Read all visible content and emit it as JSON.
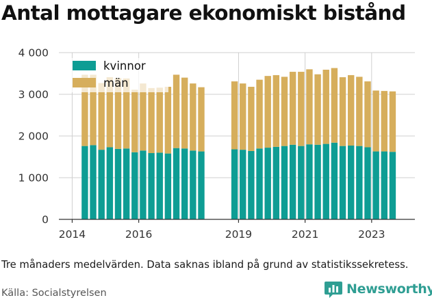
{
  "title": "Antal mottagare ekonomiskt bistånd",
  "note": "Tre månaders medelvärden. Data saknas ibland på grund av statistikssekretess.",
  "source": "Källa: Socialstyrelsen",
  "brand": {
    "name": "Newsworthy",
    "icon": "newsworthy-logo-icon"
  },
  "colors": {
    "kvinnor": "#0e9d94",
    "man": "#d6ae5c",
    "grid": "#cfcfcf",
    "axis": "#333333"
  },
  "chart_data": {
    "type": "bar",
    "stacked": true,
    "grid": true,
    "legend_position": "top-left",
    "ylim": [
      0,
      4000
    ],
    "yticks": [
      0,
      1000,
      2000,
      3000,
      4000
    ],
    "ytick_labels": [
      "0",
      "1 000",
      "2 000",
      "3 000",
      "4 000"
    ],
    "xlim": [
      2013.6,
      2024.3
    ],
    "xticks": [
      2014,
      2016,
      2019,
      2021,
      2023
    ],
    "xtick_labels": [
      "2014",
      "2016",
      "2019",
      "2021",
      "2023"
    ],
    "x": [
      2014.38,
      2014.63,
      2014.88,
      2015.13,
      2015.38,
      2015.63,
      2015.88,
      2016.13,
      2016.38,
      2016.63,
      2016.88,
      2017.13,
      2017.38,
      2017.63,
      2017.88,
      2018.88,
      2019.13,
      2019.38,
      2019.63,
      2019.88,
      2020.13,
      2020.38,
      2020.63,
      2020.88,
      2021.13,
      2021.38,
      2021.63,
      2021.88,
      2022.13,
      2022.38,
      2022.63,
      2022.88,
      2023.13,
      2023.38,
      2023.63
    ],
    "series": [
      {
        "name": "kvinnor",
        "values": [
          1760,
          1780,
          1670,
          1730,
          1690,
          1700,
          1610,
          1650,
          1590,
          1600,
          1580,
          1710,
          1700,
          1650,
          1630,
          1680,
          1670,
          1640,
          1700,
          1720,
          1740,
          1760,
          1790,
          1760,
          1800,
          1790,
          1810,
          1840,
          1760,
          1770,
          1760,
          1730,
          1630,
          1630,
          1620
        ]
      },
      {
        "name": "män",
        "values": [
          1710,
          1690,
          1600,
          1680,
          1700,
          1680,
          1500,
          1610,
          1560,
          1560,
          1600,
          1760,
          1700,
          1610,
          1540,
          1630,
          1590,
          1540,
          1650,
          1720,
          1720,
          1660,
          1750,
          1780,
          1800,
          1690,
          1780,
          1790,
          1650,
          1690,
          1660,
          1580,
          1460,
          1450,
          1450
        ]
      }
    ]
  }
}
